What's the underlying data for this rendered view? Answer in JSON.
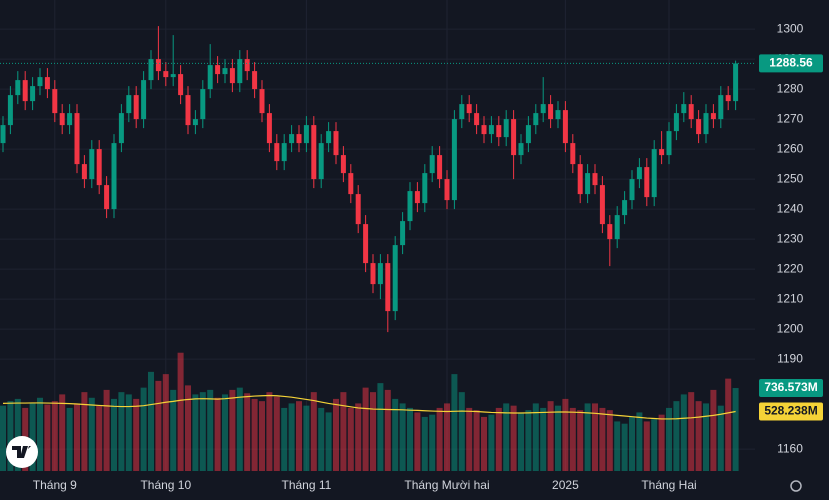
{
  "chart_data": {
    "type": "candlestick",
    "categories": [
      null,
      null,
      null,
      null,
      null,
      null,
      null,
      "Tháng 9",
      null,
      null,
      null,
      null,
      null,
      null,
      null,
      null,
      null,
      null,
      null,
      null,
      null,
      null,
      "Tháng 10",
      null,
      null,
      null,
      null,
      null,
      null,
      null,
      null,
      null,
      null,
      null,
      null,
      null,
      null,
      null,
      null,
      null,
      null,
      "Tháng 11",
      null,
      null,
      null,
      null,
      null,
      null,
      null,
      null,
      null,
      null,
      null,
      null,
      null,
      null,
      null,
      null,
      null,
      null,
      "Tháng Mười hai",
      null,
      null,
      null,
      null,
      null,
      null,
      null,
      null,
      null,
      null,
      null,
      null,
      null,
      null,
      null,
      "2025",
      null,
      null,
      null,
      null,
      null,
      null,
      null,
      null,
      null,
      null,
      null,
      null,
      null,
      "Tháng Hai",
      null,
      null,
      null,
      null,
      null,
      null,
      null,
      null,
      null
    ],
    "open": [
      1262,
      1268,
      1278,
      1283,
      1276,
      1281,
      1284,
      1280,
      1272,
      1268,
      1272,
      1255,
      1250,
      1260,
      1248,
      1240,
      1262,
      1272,
      1278,
      1270,
      1283,
      1290,
      1286,
      1284,
      1285,
      1278,
      1268,
      1270,
      1280,
      1288,
      1285,
      1287,
      1282,
      1290,
      1286,
      1280,
      1272,
      1262,
      1256,
      1262,
      1265,
      1262,
      1268,
      1250,
      1262,
      1266,
      1258,
      1252,
      1245,
      1235,
      1222,
      1215,
      1222,
      1206,
      1228,
      1236,
      1246,
      1242,
      1252,
      1258,
      1250,
      1243,
      1270,
      1275,
      1272,
      1268,
      1265,
      1268,
      1264,
      1270,
      1258,
      1262,
      1268,
      1272,
      1275,
      1270,
      1273,
      1262,
      1255,
      1245,
      1252,
      1248,
      1235,
      1230,
      1238,
      1243,
      1250,
      1254,
      1244,
      1260,
      1258,
      1266,
      1272,
      1275,
      1270,
      1265,
      1272,
      1270,
      1278,
      1276
    ],
    "high": [
      1271,
      1281,
      1286,
      1286,
      1284,
      1287,
      1287,
      1283,
      1275,
      1275,
      1275,
      1258,
      1263,
      1263,
      1251,
      1265,
      1275,
      1281,
      1281,
      1286,
      1293,
      1301,
      1289,
      1298,
      1288,
      1281,
      1273,
      1283,
      1295,
      1291,
      1290,
      1290,
      1293,
      1293,
      1289,
      1283,
      1275,
      1265,
      1265,
      1268,
      1268,
      1271,
      1271,
      1265,
      1269,
      1269,
      1261,
      1255,
      1248,
      1238,
      1225,
      1225,
      1225,
      1231,
      1239,
      1249,
      1249,
      1255,
      1261,
      1261,
      1253,
      1273,
      1278,
      1278,
      1275,
      1271,
      1271,
      1271,
      1273,
      1273,
      1265,
      1271,
      1275,
      1284,
      1278,
      1276,
      1276,
      1265,
      1258,
      1255,
      1255,
      1251,
      1238,
      1241,
      1246,
      1253,
      1257,
      1257,
      1263,
      1266,
      1269,
      1275,
      1279,
      1278,
      1273,
      1275,
      1275,
      1281,
      1281,
      1289.5
    ],
    "low": [
      1259,
      1265,
      1275,
      1273,
      1273,
      1278,
      1277,
      1269,
      1265,
      1265,
      1252,
      1247,
      1247,
      1245,
      1237,
      1237,
      1259,
      1269,
      1267,
      1267,
      1280,
      1283,
      1281,
      1281,
      1275,
      1265,
      1265,
      1267,
      1277,
      1282,
      1282,
      1279,
      1279,
      1283,
      1277,
      1269,
      1259,
      1253,
      1253,
      1259,
      1259,
      1259,
      1247,
      1247,
      1259,
      1255,
      1249,
      1242,
      1232,
      1219,
      1212,
      1210,
      1199,
      1203,
      1225,
      1233,
      1239,
      1239,
      1249,
      1247,
      1240,
      1240,
      1267,
      1269,
      1265,
      1262,
      1262,
      1261,
      1261,
      1250,
      1255,
      1259,
      1265,
      1269,
      1267,
      1267,
      1259,
      1252,
      1242,
      1242,
      1245,
      1232,
      1221,
      1227,
      1235,
      1240,
      1247,
      1241,
      1241,
      1255,
      1255,
      1263,
      1269,
      1267,
      1262,
      1262,
      1267,
      1267,
      1273,
      1273
    ],
    "close": [
      1268,
      1278,
      1283,
      1276,
      1281,
      1284,
      1280,
      1272,
      1268,
      1272,
      1255,
      1250,
      1260,
      1248,
      1240,
      1262,
      1272,
      1278,
      1270,
      1283,
      1290,
      1286,
      1284,
      1285,
      1278,
      1268,
      1270,
      1280,
      1288,
      1285,
      1287,
      1282,
      1290,
      1286,
      1280,
      1272,
      1262,
      1256,
      1262,
      1265,
      1262,
      1268,
      1250,
      1262,
      1266,
      1258,
      1252,
      1245,
      1235,
      1222,
      1215,
      1222,
      1206,
      1228,
      1236,
      1246,
      1242,
      1252,
      1258,
      1250,
      1243,
      1270,
      1275,
      1272,
      1268,
      1265,
      1268,
      1264,
      1270,
      1258,
      1262,
      1268,
      1272,
      1275,
      1270,
      1273,
      1262,
      1255,
      1245,
      1252,
      1248,
      1235,
      1230,
      1238,
      1243,
      1250,
      1254,
      1244,
      1260,
      1258,
      1266,
      1272,
      1275,
      1270,
      1265,
      1272,
      1270,
      1278,
      1276,
      1288.56
    ],
    "volume": [
      580,
      620,
      640,
      560,
      600,
      650,
      590,
      620,
      680,
      560,
      600,
      700,
      650,
      580,
      720,
      640,
      700,
      680,
      640,
      740,
      880,
      800,
      860,
      720,
      1050,
      760,
      680,
      700,
      720,
      650,
      680,
      720,
      740,
      690,
      640,
      620,
      700,
      660,
      560,
      600,
      620,
      580,
      700,
      560,
      520,
      640,
      700,
      560,
      600,
      740,
      700,
      780,
      720,
      640,
      600,
      560,
      520,
      480,
      500,
      560,
      600,
      860,
      700,
      560,
      540,
      480,
      500,
      560,
      600,
      580,
      520,
      540,
      600,
      560,
      620,
      580,
      640,
      560,
      540,
      600,
      600,
      560,
      540,
      440,
      420,
      480,
      520,
      440,
      460,
      500,
      560,
      620,
      680,
      700,
      620,
      600,
      720,
      580,
      820,
      736.573
    ],
    "volume_ma": [
      600,
      602,
      603,
      603,
      604,
      604,
      603,
      602,
      600,
      598,
      595,
      590,
      586,
      582,
      578,
      574,
      572,
      572,
      575,
      580,
      590,
      600,
      610,
      618,
      628,
      635,
      640,
      642,
      640,
      638,
      642,
      648,
      655,
      660,
      665,
      668,
      670,
      668,
      662,
      655,
      645,
      635,
      625,
      612,
      600,
      590,
      580,
      570,
      560,
      555,
      550,
      548,
      546,
      545,
      543,
      540,
      538,
      535,
      532,
      530,
      528,
      530,
      532,
      530,
      528,
      524,
      520,
      518,
      516,
      515,
      515,
      516,
      518,
      520,
      522,
      524,
      524,
      522,
      520,
      516,
      512,
      506,
      500,
      494,
      488,
      482,
      476,
      470,
      466,
      462,
      462,
      464,
      468,
      472,
      478,
      486,
      494,
      504,
      516,
      528.238
    ],
    "volume_label": "736.573M",
    "volume_ma_label": "528.238M",
    "ylim": [
      1152.7,
      1309.7
    ],
    "yticks": [
      1160,
      1190,
      1200,
      1210,
      1220,
      1230,
      1240,
      1250,
      1260,
      1270,
      1280,
      1290,
      1300
    ],
    "vlim": [
      0,
      4181
    ],
    "grid": true,
    "up_color": "#089981",
    "down_color": "#f23645",
    "ma_color": "#f5d337"
  }
}
